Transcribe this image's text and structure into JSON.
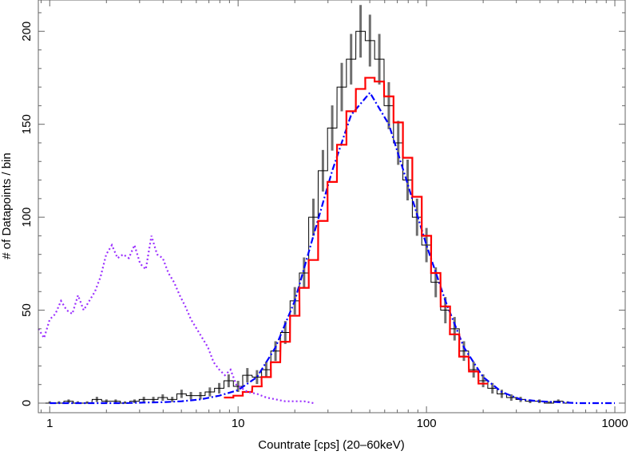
{
  "chart_data": {
    "type": "line",
    "title": "",
    "xlabel": "Countrate [cps] (20–60keV)",
    "ylabel": "# of Datapoints / bin",
    "xscale": "log",
    "xlim": [
      0.87,
      1135
    ],
    "ylim": [
      0,
      222
    ],
    "xticks": [
      1,
      10,
      100,
      1000
    ],
    "xtick_labels": [
      "1",
      "10",
      "100",
      "1000"
    ],
    "yticks": [
      0,
      50,
      100,
      150,
      200
    ],
    "ytick_labels": [
      "0",
      "50",
      "100",
      "150",
      "200"
    ],
    "grid": false,
    "series": [
      {
        "style": "histogram-with-errorbars",
        "color": "#000000",
        "errorbar_color": "#6e6e6e",
        "x": [
          1,
          1.12,
          1.26,
          1.41,
          1.58,
          1.78,
          2.0,
          2.24,
          2.51,
          2.82,
          3.16,
          3.55,
          3.98,
          4.47,
          5.01,
          5.62,
          6.31,
          7.08,
          7.94,
          8.91,
          10,
          11.2,
          12.6,
          14.1,
          15.8,
          17.8,
          20,
          22.4,
          25.1,
          28.2,
          31.6,
          35.5,
          39.8,
          44.7,
          50.1,
          56.2,
          63.1,
          70.8,
          79.4,
          89.1,
          100,
          112,
          126,
          141,
          158,
          178,
          200,
          224,
          251,
          282,
          316,
          355,
          398,
          447,
          501,
          562
        ],
        "y": [
          0,
          0,
          1,
          0,
          0,
          2,
          1,
          1,
          0,
          1,
          2,
          2,
          3,
          2,
          5,
          4,
          4,
          6,
          8,
          12,
          9,
          15,
          14,
          18,
          28,
          38,
          55,
          70,
          100,
          125,
          148,
          170,
          185,
          200,
          195,
          185,
          160,
          140,
          120,
          100,
          85,
          65,
          50,
          40,
          28,
          18,
          12,
          8,
          5,
          3,
          2,
          1,
          1,
          0,
          1,
          0
        ]
      },
      {
        "style": "dash-dot",
        "color": "#0000ff",
        "x": [
          1,
          1.26,
          1.58,
          2.0,
          2.51,
          3.16,
          3.98,
          5.01,
          6.31,
          7.94,
          10,
          12.6,
          15.8,
          20,
          25.1,
          31.6,
          39.8,
          50.1,
          63.1,
          79.4,
          100,
          126,
          158,
          200,
          251,
          316,
          398,
          501,
          631,
          794,
          1000
        ],
        "y": [
          0,
          0,
          0,
          0,
          0,
          0.3,
          0.5,
          1,
          2,
          4,
          7,
          14,
          30,
          55,
          90,
          125,
          155,
          167,
          150,
          118,
          85,
          55,
          30,
          14,
          6,
          2,
          1,
          0.5,
          0,
          0,
          0
        ]
      },
      {
        "style": "solid-step",
        "color": "#ff0000",
        "x": [
          8.91,
          10,
          11.2,
          12.6,
          14.1,
          15.8,
          17.8,
          20,
          22.4,
          25.1,
          28.2,
          31.6,
          35.5,
          39.8,
          44.7,
          50.1,
          56.2,
          63.1,
          70.8,
          79.4,
          89.1,
          100,
          112,
          126,
          141,
          158,
          178,
          200
        ],
        "y": [
          3,
          4,
          6,
          9,
          14,
          22,
          33,
          47,
          62,
          77,
          98,
          119,
          139,
          157,
          169,
          175,
          173,
          165,
          151,
          132,
          111,
          90,
          70,
          52,
          37,
          25,
          17,
          10.5
        ]
      },
      {
        "style": "dotted",
        "color": "#9b30ff",
        "x": [
          0.871,
          0.933,
          1,
          1.072,
          1.148,
          1.23,
          1.318,
          1.413,
          1.514,
          1.622,
          1.738,
          1.862,
          1.995,
          2.138,
          2.291,
          2.455,
          2.63,
          2.818,
          3.02,
          3.236,
          3.467,
          3.715,
          3.981,
          4.266,
          4.571,
          4.898,
          5.248,
          5.623,
          6.026,
          6.457,
          6.918,
          7.413,
          7.943,
          8.511,
          9.12,
          9.772,
          10.47,
          11.22,
          12.59,
          14.13,
          15.85,
          17.78,
          19.95,
          22.39,
          25.12
        ],
        "y": [
          40,
          35,
          45,
          48,
          55,
          50,
          48,
          58,
          50,
          55,
          60,
          68,
          80,
          85,
          78,
          80,
          78,
          85,
          75,
          72,
          90,
          80,
          78,
          70,
          65,
          58,
          52,
          45,
          40,
          35,
          30,
          22,
          18,
          15,
          18,
          10,
          8,
          6,
          5,
          3,
          2,
          1,
          1,
          1,
          0
        ]
      }
    ]
  }
}
